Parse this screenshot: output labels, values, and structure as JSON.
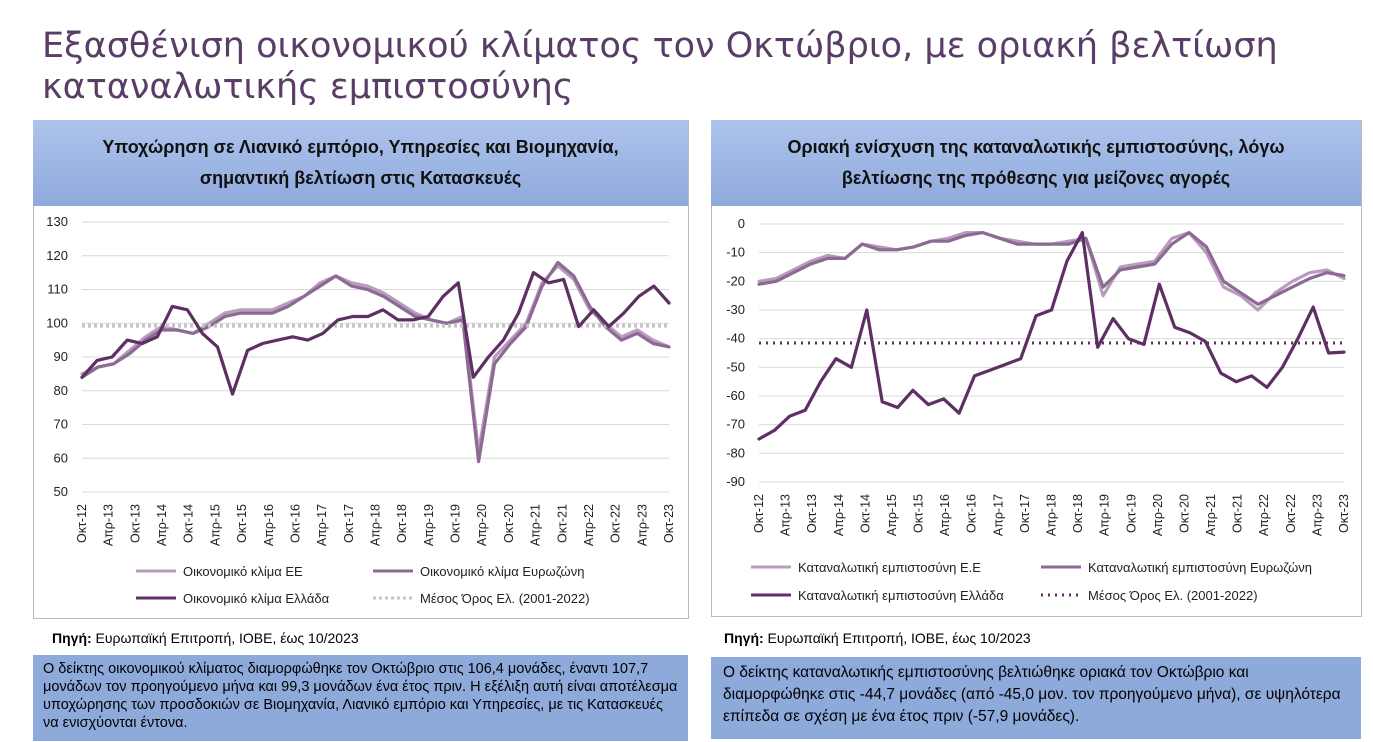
{
  "page_title": "Εξασθένιση οικονομικού κλίματος τον Οκτώβριο, με οριακή βελτίωση καταναλωτικής εμπιστοσύνης",
  "left": {
    "heading": "Υποχώρηση σε Λιανικό εμπόριο, Υπηρεσίες και Βιομηχανία, σημαντική βελτίωση στις Κατασκευές",
    "source_label": "Πηγή:",
    "source_text": " Ευρωπαϊκή Επιτροπή, ΙΟΒΕ, έως 10/2023",
    "note": "Ο δείκτης οικονομικού κλίματος διαμορφώθηκε τον Οκτώβριο στις 106,4 μονάδες, έναντι 107,7 μονάδων τον προηγούμενο μήνα και 99,3 μονάδων ένα έτος πριν. Η εξέλιξη αυτή είναι αποτέλεσμα υποχώρησης των προσδοκιών σε Βιομηχανία, Λιανικό εμπόριο και Υπηρεσίες, με τις Κατασκευές να ενισχύονται έντονα."
  },
  "right": {
    "heading": "Οριακή ενίσχυση της καταναλωτικής εμπιστοσύνης, λόγω βελτίωσης της πρόθεσης για μείζονες αγορές",
    "source_label": "Πηγή:",
    "source_text": " Ευρωπαϊκή Επιτροπή, ΙΟΒΕ, έως 10/2023",
    "note": "Ο δείκτης καταναλωτικής εμπιστοσύνης βελτιώθηκε οριακά τον Οκτώβριο και διαμορφώθηκε στις -44,7 μονάδες (από -45,0 μον. τον προηγούμενο μήνα), σε υψηλότερα επίπεδα σε σχέση με ένα έτος πριν (-57,9 μονάδες)."
  },
  "colors": {
    "eu": "#b99bbd",
    "euro": "#8c6a94",
    "greece": "#5e2f62",
    "avg": "#c4c4c8",
    "avg_right": "#5e2f62",
    "grid": "#d9d9d9",
    "heading_bg": "#8eaadb",
    "title": "#5a3d66"
  },
  "chart_data": [
    {
      "type": "line",
      "ylim": [
        50,
        130
      ],
      "yticks": [
        50,
        60,
        70,
        80,
        90,
        100,
        110,
        120,
        130
      ],
      "xtick_labels": [
        "Οκτ-12",
        "Απρ-13",
        "Οκτ-13",
        "Απρ-14",
        "Οκτ-14",
        "Απρ-15",
        "Οκτ-15",
        "Απρ-16",
        "Οκτ-16",
        "Απρ-17",
        "Οκτ-17",
        "Απρ-18",
        "Οκτ-18",
        "Απρ-19",
        "Οκτ-19",
        "Απρ-20",
        "Οκτ-20",
        "Απρ-21",
        "Οκτ-21",
        "Απρ-22",
        "Οκτ-22",
        "Απρ-23",
        "Οκτ-23"
      ],
      "legend": [
        "Οικονομικό κλίμα ΕΕ",
        "Οικονομικό κλίμα Ευρωζώνη",
        "Οικονομικό κλίμα Ελλάδα",
        "Μέσος Όρος Ελ. (2001-2022)"
      ],
      "series": [
        {
          "name": "Οικονομικό κλίμα ΕΕ",
          "key": "eu",
          "style": "solid",
          "values": [
            85,
            87,
            88,
            92,
            96,
            99,
            98,
            97,
            100,
            103,
            104,
            104,
            104,
            106,
            108,
            112,
            114,
            112,
            111,
            109,
            106,
            103,
            101,
            100,
            102,
            62,
            90,
            95,
            100,
            112,
            117,
            113,
            104,
            100,
            96,
            98,
            95,
            93
          ]
        },
        {
          "name": "Οικονομικό κλίμα Ευρωζώνη",
          "key": "euro",
          "style": "solid",
          "values": [
            84,
            87,
            88,
            91,
            95,
            98,
            98,
            97,
            99,
            102,
            103,
            103,
            103,
            105,
            108,
            111,
            114,
            111,
            110,
            108,
            105,
            102,
            101,
            100,
            101,
            59,
            88,
            94,
            99,
            111,
            118,
            114,
            105,
            99,
            95,
            97,
            94,
            93
          ]
        },
        {
          "name": "Οικονομικό κλίμα Ελλάδα",
          "key": "greece",
          "style": "solid",
          "values": [
            84,
            89,
            90,
            95,
            94,
            96,
            105,
            104,
            97,
            93,
            79,
            92,
            94,
            95,
            96,
            95,
            97,
            101,
            102,
            102,
            104,
            101,
            101,
            102,
            108,
            112,
            84,
            90,
            95,
            103,
            115,
            112,
            113,
            99,
            104,
            99,
            103,
            108,
            111,
            106
          ]
        },
        {
          "name": "Μέσος Όρος Ελ. (2001-2022)",
          "key": "avg",
          "style": "dotted",
          "values": [
            99.3
          ]
        }
      ]
    },
    {
      "type": "line",
      "ylim": [
        -90,
        0
      ],
      "yticks": [
        0,
        -10,
        -20,
        -30,
        -40,
        -50,
        -60,
        -70,
        -80,
        -90
      ],
      "xtick_labels": [
        "Οκτ-12",
        "Απρ-13",
        "Οκτ-13",
        "Απρ-14",
        "Οκτ-14",
        "Απρ-15",
        "Οκτ-15",
        "Απρ-16",
        "Οκτ-16",
        "Απρ-17",
        "Οκτ-17",
        "Απρ-18",
        "Οκτ-18",
        "Απρ-19",
        "Οκτ-19",
        "Απρ-20",
        "Οκτ-20",
        "Απρ-21",
        "Οκτ-21",
        "Απρ-22",
        "Οκτ-22",
        "Απρ-23",
        "Οκτ-23"
      ],
      "legend": [
        "Καταναλωτική εμπιστοσύνη Ε.Ε",
        "Καταναλωτική εμπιστοσύνη Ευρωζώνη",
        "Καταναλωτική εμπιστοσύνη Ελλάδα",
        "Μέσος Όρος Ελ. (2001-2022)"
      ],
      "series": [
        {
          "name": "Καταναλωτική εμπιστοσύνη Ε.Ε",
          "key": "eu",
          "style": "solid",
          "values": [
            -20,
            -19,
            -16,
            -13,
            -11,
            -12,
            -7,
            -8,
            -9,
            -8,
            -6,
            -5,
            -3,
            -3,
            -5,
            -6,
            -7,
            -7,
            -6,
            -5,
            -25,
            -15,
            -14,
            -13,
            -5,
            -3,
            -10,
            -22,
            -25,
            -30,
            -24,
            -20,
            -17,
            -16,
            -19
          ]
        },
        {
          "name": "Καταναλωτική εμπιστοσύνη Ευρωζώνη",
          "key": "euro",
          "style": "solid",
          "values": [
            -21,
            -20,
            -17,
            -14,
            -12,
            -12,
            -7,
            -9,
            -9,
            -8,
            -6,
            -6,
            -4,
            -3,
            -5,
            -7,
            -7,
            -7,
            -7,
            -5,
            -22,
            -16,
            -15,
            -14,
            -7,
            -3,
            -8,
            -20,
            -24,
            -28,
            -25,
            -22,
            -19,
            -17,
            -18
          ]
        },
        {
          "name": "Καταναλωτική εμπιστοσύνη Ελλάδα",
          "key": "greece",
          "style": "solid",
          "values": [
            -75,
            -72,
            -67,
            -65,
            -55,
            -47,
            -50,
            -30,
            -62,
            -64,
            -58,
            -63,
            -61,
            -66,
            -53,
            -51,
            -49,
            -47,
            -32,
            -30,
            -13,
            -3,
            -43,
            -33,
            -40,
            -42,
            -21,
            -36,
            -38,
            -41,
            -52,
            -55,
            -53,
            -57,
            -50,
            -40,
            -29,
            -45,
            -44.7
          ]
        },
        {
          "name": "Μέσος Όρος Ελ. (2001-2022)",
          "key": "avg_right",
          "style": "dotted",
          "values": [
            -41.5
          ]
        }
      ]
    }
  ]
}
